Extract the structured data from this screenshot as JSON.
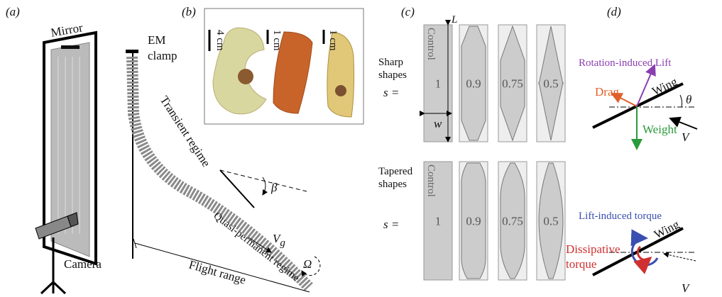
{
  "panels": {
    "a": {
      "label": "(a)",
      "mirror": "Mirror",
      "clamp": [
        "EM",
        "clamp"
      ],
      "transient": "Transient regime",
      "angle": "β",
      "quasi": "Quasi-permanent regime",
      "velocity": {
        "symbol": "V",
        "subscript": "g"
      },
      "rotation": "Ω",
      "camera": "Camera",
      "range": "Flight range"
    },
    "b": {
      "label": "(b)",
      "scales": [
        "4 cm",
        "1 cm",
        "1 cm"
      ]
    },
    "c": {
      "label": "(c)",
      "length": "L",
      "width": "w",
      "sharp": {
        "title": [
          "Sharp",
          "shapes"
        ],
        "s": "s =",
        "control": "Control",
        "values": [
          "1",
          "0.9",
          "0.75",
          "0.5"
        ]
      },
      "tapered": {
        "title": [
          "Tapered",
          "shapes"
        ],
        "s": "s =",
        "control": "Control",
        "values": [
          "1",
          "0.9",
          "0.75",
          "0.5"
        ]
      }
    },
    "d": {
      "label": "(d)",
      "top": {
        "lift": "Rotation-induced Lift",
        "wing": "Wing",
        "angle": "θ",
        "drag": "Drag",
        "weight": "Weight",
        "velocity": "V"
      },
      "bottom": {
        "torque": "Lift-induced torque",
        "wing": "Wing",
        "dissipative": [
          "Dissipative",
          "torque"
        ],
        "velocity": "V"
      }
    }
  }
}
